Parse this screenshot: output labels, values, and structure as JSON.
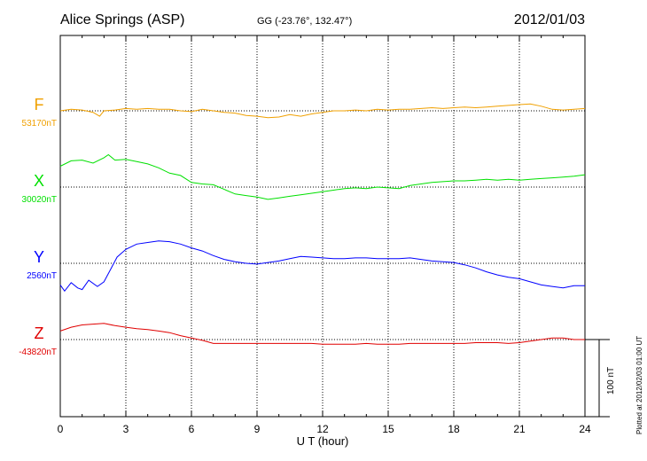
{
  "header": {
    "station": "Alice Springs (ASP)",
    "coords": "GG (-23.76°, 132.47°)",
    "date": "2012/01/03"
  },
  "footer": {
    "plotted": "Plotted at 2012/02/03 01:00 UT"
  },
  "colors": {
    "F": "#f0a000",
    "X": "#00e000",
    "Y": "#0000ff",
    "Z": "#e00000",
    "grid": "#000000"
  },
  "chart_data": {
    "type": "line",
    "title": "Alice Springs (ASP)",
    "xlabel": "U T (hour)",
    "xlim": [
      0,
      24
    ],
    "xticks": [
      0,
      3,
      6,
      9,
      12,
      15,
      18,
      21,
      24
    ],
    "grid": true,
    "scale_bar": {
      "label": "100 nT",
      "value_nT": 100
    },
    "series": [
      {
        "name": "F",
        "baseline_label": "53170nT",
        "baseline_nT": 53170,
        "x": [
          0,
          0.5,
          1,
          1.5,
          1.8,
          2,
          2.5,
          3,
          3.5,
          4,
          4.5,
          5,
          5.5,
          6,
          6.5,
          7,
          7.5,
          8,
          8.5,
          9,
          9.5,
          10,
          10.5,
          11,
          11.5,
          12,
          12.5,
          13,
          13.5,
          14,
          14.5,
          15,
          15.5,
          16,
          16.5,
          17,
          17.5,
          18,
          18.5,
          19,
          19.5,
          20,
          20.5,
          21,
          21.5,
          22,
          22.5,
          23,
          23.5,
          24
        ],
        "values": [
          53170,
          53172,
          53171,
          53168,
          53163,
          53170,
          53171,
          53173,
          53172,
          53173,
          53172,
          53172,
          53170,
          53169,
          53172,
          53170,
          53168,
          53167,
          53164,
          53163,
          53161,
          53162,
          53165,
          53163,
          53166,
          53168,
          53170,
          53170,
          53171,
          53170,
          53172,
          53171,
          53172,
          53172,
          53173,
          53174,
          53173,
          53174,
          53175,
          53174,
          53175,
          53176,
          53177,
          53178,
          53179,
          53176,
          53172,
          53171,
          53172,
          53173
        ]
      },
      {
        "name": "X",
        "baseline_label": "30020nT",
        "baseline_nT": 30020,
        "x": [
          0,
          0.5,
          1,
          1.5,
          2,
          2.2,
          2.5,
          3,
          3.5,
          4,
          4.5,
          5,
          5.5,
          6,
          6.5,
          7,
          7.5,
          8,
          8.5,
          9,
          9.5,
          10,
          10.5,
          11,
          11.5,
          12,
          12.5,
          13,
          13.5,
          14,
          14.5,
          15,
          15.5,
          16,
          16.5,
          17,
          17.5,
          18,
          18.5,
          19,
          19.5,
          20,
          20.5,
          21,
          21.5,
          22,
          22.5,
          23,
          23.5,
          24
        ],
        "values": [
          30047,
          30054,
          30055,
          30051,
          30058,
          30062,
          30055,
          30056,
          30053,
          30050,
          30045,
          30038,
          30035,
          30026,
          30024,
          30023,
          30017,
          30011,
          30009,
          30007,
          30004,
          30006,
          30008,
          30010,
          30012,
          30014,
          30016,
          30018,
          30019,
          30018,
          30020,
          30019,
          30018,
          30022,
          30024,
          30026,
          30027,
          30028,
          30028,
          30029,
          30030,
          30029,
          30030,
          30029,
          30030,
          30031,
          30032,
          30033,
          30034,
          30036
        ]
      },
      {
        "name": "Y",
        "baseline_label": "2560nT",
        "baseline_nT": 2560,
        "x": [
          0,
          0.2,
          0.5,
          0.8,
          1,
          1.3,
          1.7,
          2,
          2.3,
          2.6,
          3,
          3.5,
          4,
          4.5,
          5,
          5.5,
          6,
          6.5,
          7,
          7.5,
          8,
          8.5,
          9,
          9.5,
          10,
          10.5,
          11,
          11.5,
          12,
          12.5,
          13,
          13.5,
          14,
          14.5,
          15,
          15.5,
          16,
          16.5,
          17,
          17.5,
          18,
          18.5,
          19,
          19.5,
          20,
          20.5,
          21,
          21.5,
          22,
          22.5,
          23,
          23.5,
          24
        ],
        "values": [
          2532,
          2524,
          2535,
          2528,
          2526,
          2538,
          2530,
          2536,
          2552,
          2568,
          2578,
          2585,
          2587,
          2589,
          2588,
          2585,
          2580,
          2576,
          2570,
          2565,
          2562,
          2560,
          2559,
          2561,
          2563,
          2566,
          2569,
          2568,
          2567,
          2566,
          2566,
          2567,
          2567,
          2566,
          2566,
          2566,
          2567,
          2565,
          2563,
          2562,
          2561,
          2558,
          2554,
          2549,
          2545,
          2542,
          2540,
          2536,
          2532,
          2530,
          2528,
          2531,
          2531
        ]
      },
      {
        "name": "Z",
        "baseline_label": "-43820nT",
        "baseline_nT": -43820,
        "x": [
          0,
          0.5,
          1,
          1.5,
          2,
          2.5,
          3,
          3.5,
          4,
          4.5,
          5,
          5.5,
          6,
          6.5,
          7,
          7.5,
          8,
          8.5,
          9,
          9.5,
          10,
          10.5,
          11,
          11.5,
          12,
          12.5,
          13,
          13.5,
          14,
          14.5,
          15,
          15.5,
          16,
          16.5,
          17,
          17.5,
          18,
          18.5,
          19,
          19.5,
          20,
          20.5,
          21,
          21.5,
          22,
          22.5,
          23,
          23.5,
          24
        ],
        "values": [
          -43809,
          -43804,
          -43801,
          -43800,
          -43799,
          -43802,
          -43804,
          -43806,
          -43807,
          -43809,
          -43811,
          -43815,
          -43818,
          -43821,
          -43825,
          -43825,
          -43825,
          -43825,
          -43825,
          -43825,
          -43825,
          -43825,
          -43825,
          -43825,
          -43826,
          -43826,
          -43826,
          -43826,
          -43825,
          -43826,
          -43826,
          -43826,
          -43825,
          -43825,
          -43825,
          -43825,
          -43825,
          -43825,
          -43824,
          -43824,
          -43824,
          -43825,
          -43824,
          -43822,
          -43820,
          -43818,
          -43818,
          -43820,
          -43820
        ]
      }
    ]
  }
}
